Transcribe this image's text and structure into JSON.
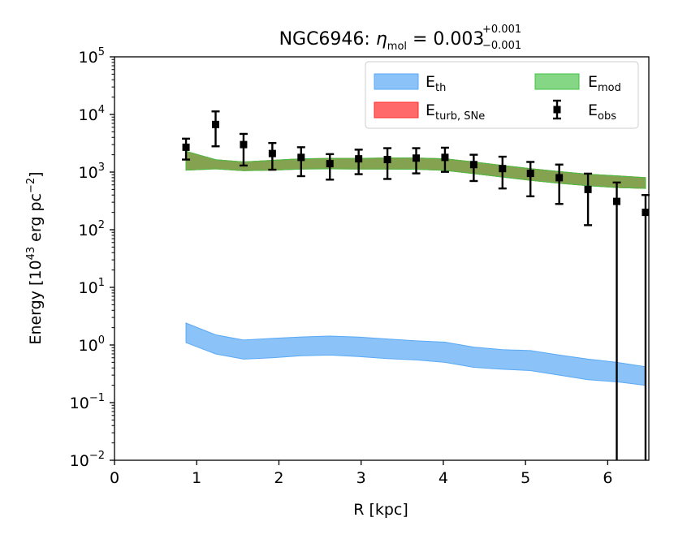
{
  "chart_data": {
    "type": "line",
    "title": {
      "prefix": "NGC6946: ",
      "symbol": "η",
      "symbol_sub": "mol",
      "equals": " = 0.003",
      "err_plus": "+0.001",
      "err_minus": "−0.001"
    },
    "xlabel": "R [kpc]",
    "ylabel": {
      "text1": "Energy [10",
      "sup1": "43",
      "text2": " erg pc",
      "sup2": "−2",
      "text3": "]"
    },
    "xlim": [
      0,
      6.5
    ],
    "ylim_log10": [
      -2,
      5
    ],
    "x_ticks": [
      {
        "value": 0,
        "label": "0"
      },
      {
        "value": 1,
        "label": "1"
      },
      {
        "value": 2,
        "label": "2"
      },
      {
        "value": 3,
        "label": "3"
      },
      {
        "value": 4,
        "label": "4"
      },
      {
        "value": 5,
        "label": "5"
      },
      {
        "value": 6,
        "label": "6"
      }
    ],
    "y_ticks": [
      {
        "exp": -2,
        "base": "10",
        "sup": "−2"
      },
      {
        "exp": -1,
        "base": "10",
        "sup": "−1"
      },
      {
        "exp": 0,
        "base": "10",
        "sup": "0"
      },
      {
        "exp": 1,
        "base": "10",
        "sup": "1"
      },
      {
        "exp": 2,
        "base": "10",
        "sup": "2"
      },
      {
        "exp": 3,
        "base": "10",
        "sup": "3"
      },
      {
        "exp": 4,
        "base": "10",
        "sup": "4"
      },
      {
        "exp": 5,
        "base": "10",
        "sup": "5"
      }
    ],
    "series": [
      {
        "name": "E_th",
        "label_main": "E",
        "label_sub": "th",
        "kind": "band",
        "color": "#5aa9f5",
        "fill_opacity": 0.7,
        "x": [
          0.87,
          1.23,
          1.57,
          1.92,
          2.27,
          2.62,
          2.97,
          3.32,
          3.67,
          4.02,
          4.37,
          4.72,
          5.06,
          5.41,
          5.76,
          6.11,
          6.46
        ],
        "low": [
          1.1,
          0.7,
          0.57,
          0.6,
          0.65,
          0.67,
          0.63,
          0.58,
          0.55,
          0.5,
          0.41,
          0.38,
          0.36,
          0.3,
          0.25,
          0.23,
          0.2
        ],
        "high": [
          2.4,
          1.5,
          1.22,
          1.3,
          1.38,
          1.43,
          1.37,
          1.27,
          1.18,
          1.12,
          0.92,
          0.83,
          0.8,
          0.67,
          0.57,
          0.5,
          0.42
        ]
      },
      {
        "name": "E_turb,SNe",
        "label_main": "E",
        "label_sub": "turb, SNe",
        "kind": "band",
        "color": "#ff2a2a",
        "fill_opacity": 0.7,
        "x": [
          0.87,
          1.23,
          1.57,
          1.92,
          2.27,
          2.62,
          2.97,
          3.32,
          3.67,
          4.02,
          4.37,
          4.72,
          5.06,
          5.41,
          5.76,
          6.11,
          6.46
        ],
        "low": [
          1080,
          1140,
          1060,
          1080,
          1130,
          1140,
          1130,
          1130,
          1120,
          1070,
          940,
          820,
          720,
          640,
          580,
          540,
          520
        ],
        "high": [
          2300,
          1640,
          1500,
          1600,
          1700,
          1730,
          1730,
          1760,
          1760,
          1700,
          1500,
          1300,
          1150,
          1020,
          920,
          860,
          800
        ]
      },
      {
        "name": "E_mod",
        "label_main": "E",
        "label_sub": "mod",
        "kind": "band",
        "color": "#44c244",
        "fill_opacity": 0.65,
        "x": [
          0.87,
          1.23,
          1.57,
          1.92,
          2.27,
          2.62,
          2.97,
          3.32,
          3.67,
          4.02,
          4.37,
          4.72,
          5.06,
          5.41,
          5.76,
          6.11,
          6.46
        ],
        "low": [
          1080,
          1140,
          1060,
          1080,
          1130,
          1140,
          1130,
          1130,
          1120,
          1070,
          940,
          820,
          720,
          640,
          580,
          540,
          520
        ],
        "high": [
          2300,
          1640,
          1500,
          1600,
          1700,
          1730,
          1730,
          1760,
          1760,
          1700,
          1500,
          1300,
          1150,
          1020,
          920,
          860,
          800
        ]
      },
      {
        "name": "E_obs",
        "label_main": "E",
        "label_sub": "obs",
        "kind": "errorbar",
        "color": "#000000",
        "x": [
          0.87,
          1.23,
          1.57,
          1.92,
          2.27,
          2.62,
          2.97,
          3.32,
          3.67,
          4.02,
          4.37,
          4.72,
          5.06,
          5.41,
          5.76,
          6.11,
          6.46
        ],
        "y": [
          2700,
          6700,
          3000,
          2100,
          1800,
          1400,
          1700,
          1650,
          1750,
          1800,
          1350,
          1150,
          950,
          800,
          500,
          310,
          200
        ],
        "err_low": [
          1650,
          2800,
          1300,
          1100,
          850,
          740,
          920,
          760,
          950,
          1010,
          700,
          520,
          380,
          280,
          120,
          0.005,
          0.005
        ],
        "err_high": [
          3800,
          11300,
          4600,
          3200,
          2700,
          2050,
          2450,
          2600,
          2600,
          2650,
          2000,
          1850,
          1500,
          1350,
          940,
          660,
          400
        ]
      }
    ],
    "legend_position": "top-right"
  }
}
